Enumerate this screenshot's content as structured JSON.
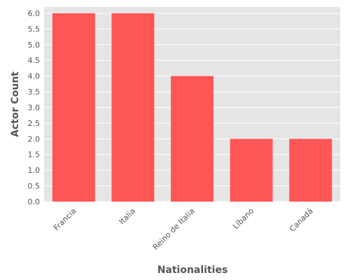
{
  "chart_data": {
    "type": "bar",
    "title": "",
    "xlabel": "Nationalities",
    "ylabel": "Actor Count",
    "categories": [
      "Francia",
      "Italia",
      "Reino de Italia",
      "Líbano",
      "Canadá"
    ],
    "values": [
      6,
      6,
      4,
      2,
      2
    ],
    "ylim": [
      0,
      6.2
    ],
    "yticks": [
      "0.0",
      "0.5",
      "1.0",
      "1.5",
      "2.0",
      "2.5",
      "3.0",
      "3.5",
      "4.0",
      "4.5",
      "5.0",
      "5.5",
      "6.0"
    ],
    "grid": true,
    "legend": "none",
    "colors": {
      "bar": "#ff5555",
      "panel_background": "#e5e5e5",
      "gridline": "#ffffff",
      "text": "#555555"
    }
  }
}
